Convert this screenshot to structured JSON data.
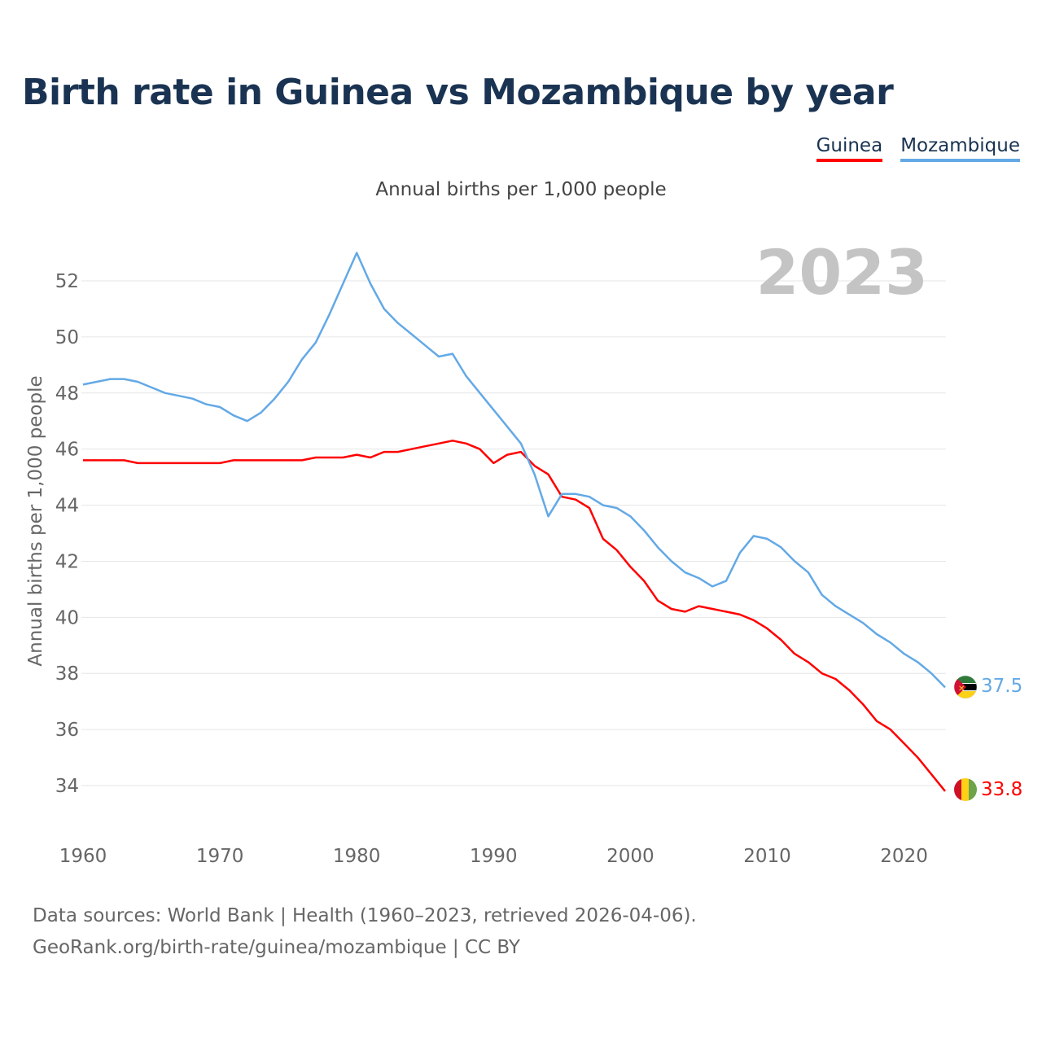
{
  "colors": {
    "guinea": "#ff0000",
    "mozambique": "#63a9e6",
    "title": "#1a3352",
    "year_stamp": "#c4c4c4"
  },
  "legend": [
    {
      "name": "Guinea",
      "color": "#ff0000"
    },
    {
      "name": "Mozambique",
      "color": "#63a9e6"
    }
  ],
  "footer": {
    "line1": "Data sources: World Bank | Health (1960–2023, retrieved 2026-04-06).",
    "line2": "GeoRank.org/birth-rate/guinea/mozambique | CC BY"
  },
  "chart_data": {
    "type": "line",
    "title": "Birth rate in Guinea vs Mozambique by year",
    "subtitle": "Annual births per 1,000 people",
    "ylabel": "Annual births per 1,000 people",
    "xlabel": "",
    "year_stamp": "2023",
    "xlim": [
      1960,
      2023
    ],
    "ylim": [
      32.5,
      53.5
    ],
    "yticks": [
      34,
      36,
      38,
      40,
      42,
      44,
      46,
      48,
      50,
      52
    ],
    "xticks": [
      1960,
      1970,
      1980,
      1990,
      2000,
      2010,
      2020
    ],
    "grid": true,
    "x": [
      1960,
      1961,
      1962,
      1963,
      1964,
      1965,
      1966,
      1967,
      1968,
      1969,
      1970,
      1971,
      1972,
      1973,
      1974,
      1975,
      1976,
      1977,
      1978,
      1979,
      1980,
      1981,
      1982,
      1983,
      1984,
      1985,
      1986,
      1987,
      1988,
      1989,
      1990,
      1991,
      1992,
      1993,
      1994,
      1995,
      1996,
      1997,
      1998,
      1999,
      2000,
      2001,
      2002,
      2003,
      2004,
      2005,
      2006,
      2007,
      2008,
      2009,
      2010,
      2011,
      2012,
      2013,
      2014,
      2015,
      2016,
      2017,
      2018,
      2019,
      2020,
      2021,
      2022,
      2023
    ],
    "series": [
      {
        "name": "Guinea",
        "color": "#ff0000",
        "end_label": "33.8",
        "flag": "guinea-flag",
        "values": [
          45.6,
          45.6,
          45.6,
          45.6,
          45.5,
          45.5,
          45.5,
          45.5,
          45.5,
          45.5,
          45.5,
          45.6,
          45.6,
          45.6,
          45.6,
          45.6,
          45.6,
          45.7,
          45.7,
          45.7,
          45.8,
          45.7,
          45.9,
          45.9,
          46.0,
          46.1,
          46.2,
          46.3,
          46.2,
          46.0,
          45.5,
          45.8,
          45.9,
          45.4,
          45.1,
          44.3,
          44.2,
          43.9,
          42.8,
          42.4,
          41.8,
          41.3,
          40.6,
          40.3,
          40.2,
          40.4,
          40.3,
          40.2,
          40.1,
          39.9,
          39.6,
          39.2,
          38.7,
          38.4,
          38.0,
          37.8,
          37.4,
          36.9,
          36.3,
          36.0,
          35.5,
          35.0,
          34.4,
          33.8
        ]
      },
      {
        "name": "Mozambique",
        "color": "#63a9e6",
        "end_label": "37.5",
        "flag": "mozambique-flag",
        "values": [
          48.3,
          48.4,
          48.5,
          48.5,
          48.4,
          48.2,
          48.0,
          47.9,
          47.8,
          47.6,
          47.5,
          47.2,
          47.0,
          47.3,
          47.8,
          48.4,
          49.2,
          49.8,
          50.8,
          51.9,
          53.0,
          51.9,
          51.0,
          50.5,
          50.1,
          49.7,
          49.3,
          49.4,
          48.6,
          48.0,
          47.4,
          46.8,
          46.2,
          45.1,
          43.6,
          44.4,
          44.4,
          44.3,
          44.0,
          43.9,
          43.6,
          43.1,
          42.5,
          42.0,
          41.6,
          41.4,
          41.1,
          41.3,
          42.3,
          42.9,
          42.8,
          42.5,
          42.0,
          41.6,
          40.8,
          40.4,
          40.1,
          39.8,
          39.4,
          39.1,
          38.7,
          38.4,
          38.0,
          37.5
        ]
      }
    ]
  }
}
